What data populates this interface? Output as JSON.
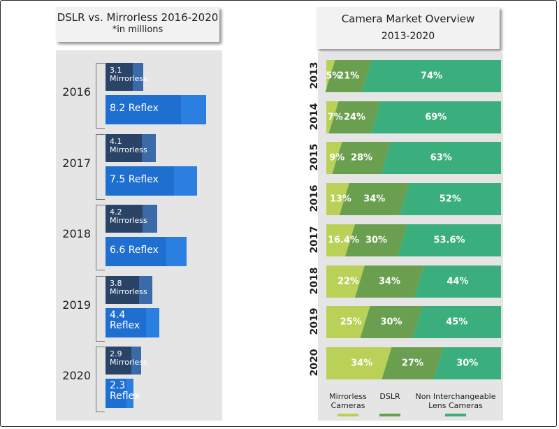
{
  "colors": {
    "mirrorless_bar": "#2a4468",
    "mirrorless_tail": "#3a6aa8",
    "reflex_bar": "#1f6fd0",
    "reflex_tail": "#2a7fe0",
    "seg_mirrorless": "#b8d156",
    "seg_dslr": "#6a9f4f",
    "seg_nonil": "#3aae7c"
  },
  "left_chart": {
    "title": "DSLR vs. Mirrorless 2016-2020",
    "subtitle": "*in millions"
  },
  "right_chart": {
    "title": "Camera Market Overview",
    "subtitle": "2013-2020",
    "legend": {
      "mirrorless": "Mirrorless\nCameras",
      "dslr": "DSLR",
      "nonil": "Non Interchangeable\nLens Cameras"
    }
  },
  "chart_data": [
    {
      "type": "bar",
      "title": "DSLR vs. Mirrorless 2016-2020",
      "subtitle": "*in millions",
      "categories": [
        "2016",
        "2017",
        "2018",
        "2019",
        "2020"
      ],
      "series": [
        {
          "name": "Mirrorless",
          "values": [
            3.1,
            4.1,
            4.2,
            3.8,
            2.9
          ],
          "labels": [
            "3.1\nMirrorless",
            "4.1\nMirrorless",
            "4.2\nMirrorless",
            "3.8\nMirrorless",
            "2.9\nMirrorless"
          ]
        },
        {
          "name": "Reflex",
          "values": [
            8.2,
            7.5,
            6.6,
            4.4,
            2.3
          ],
          "labels": [
            "8.2 Reflex",
            "7.5 Reflex",
            "6.6 Reflex",
            "4.4\nReflex",
            "2.3\nReflex"
          ]
        }
      ]
    },
    {
      "type": "bar",
      "stacked": "100%",
      "title": "Camera Market Overview",
      "subtitle": "2013-2020",
      "categories": [
        "2013",
        "2014",
        "2015",
        "2016",
        "2017",
        "2018",
        "2019",
        "2020"
      ],
      "series": [
        {
          "name": "Mirrorless Cameras",
          "values": [
            5,
            7,
            9,
            13,
            16.4,
            22,
            25,
            34
          ],
          "labels": [
            "5%",
            "7%",
            "9%",
            "13%",
            "16.4%",
            "22%",
            "25%",
            "34%"
          ]
        },
        {
          "name": "DSLR",
          "values": [
            21,
            24,
            28,
            34,
            30,
            34,
            30,
            27
          ],
          "labels": [
            "21%",
            "24%",
            "28%",
            "34%",
            "30%",
            "34%",
            "30%",
            "27%"
          ]
        },
        {
          "name": "Non Interchangeable Lens Cameras",
          "values": [
            74,
            69,
            63,
            52,
            53.6,
            44,
            45,
            30
          ],
          "labels": [
            "74%",
            "69%",
            "63%",
            "52%",
            "53.6%",
            "44%",
            "45%",
            "30%"
          ]
        }
      ]
    }
  ]
}
